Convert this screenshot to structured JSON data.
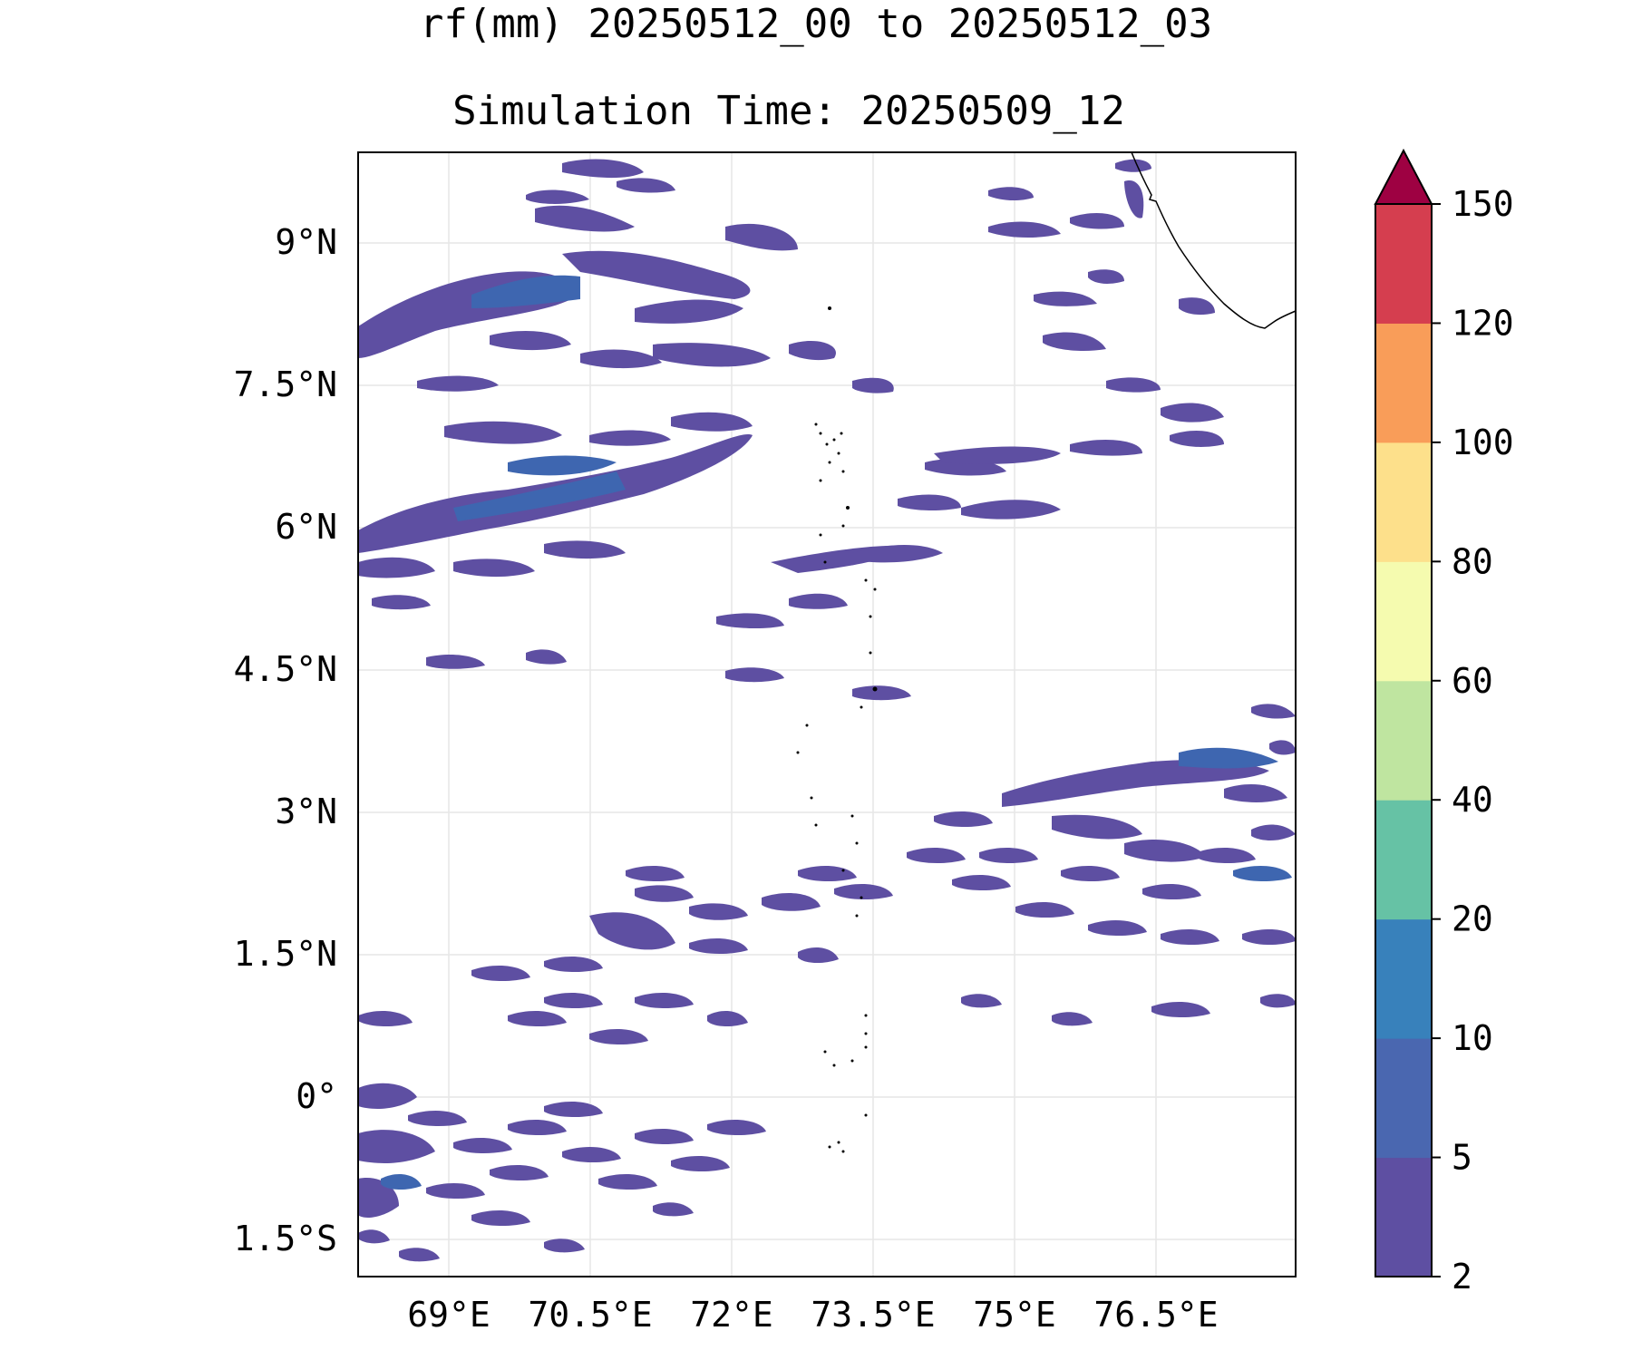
{
  "title": "rf(mm) 20250512_00 to 20250512_03",
  "subtitle": "Simulation Time: 20250509_12",
  "map": {
    "lat_ticks": [
      "9°N",
      "7.5°N",
      "6°N",
      "4.5°N",
      "3°N",
      "1.5°N",
      "0°",
      "1.5°S"
    ],
    "lon_ticks": [
      "69°E",
      "70.5°E",
      "72°E",
      "73.5°E",
      "75°E",
      "76.5°E"
    ],
    "colors": {
      "light_rain": "#5e4fa2",
      "moderate_rain": "#3e66b0"
    }
  },
  "colorbar": {
    "ticks": [
      "2",
      "5",
      "10",
      "20",
      "40",
      "60",
      "80",
      "100",
      "120",
      "150"
    ],
    "colors": [
      "#5e4fa2",
      "#4a67b0",
      "#3881bb",
      "#66c2a5",
      "#bfe5a0",
      "#f5fbaf",
      "#fde08b",
      "#f99d59",
      "#d53e4f"
    ],
    "extend_color": "#9e0142",
    "extend": "max"
  }
}
